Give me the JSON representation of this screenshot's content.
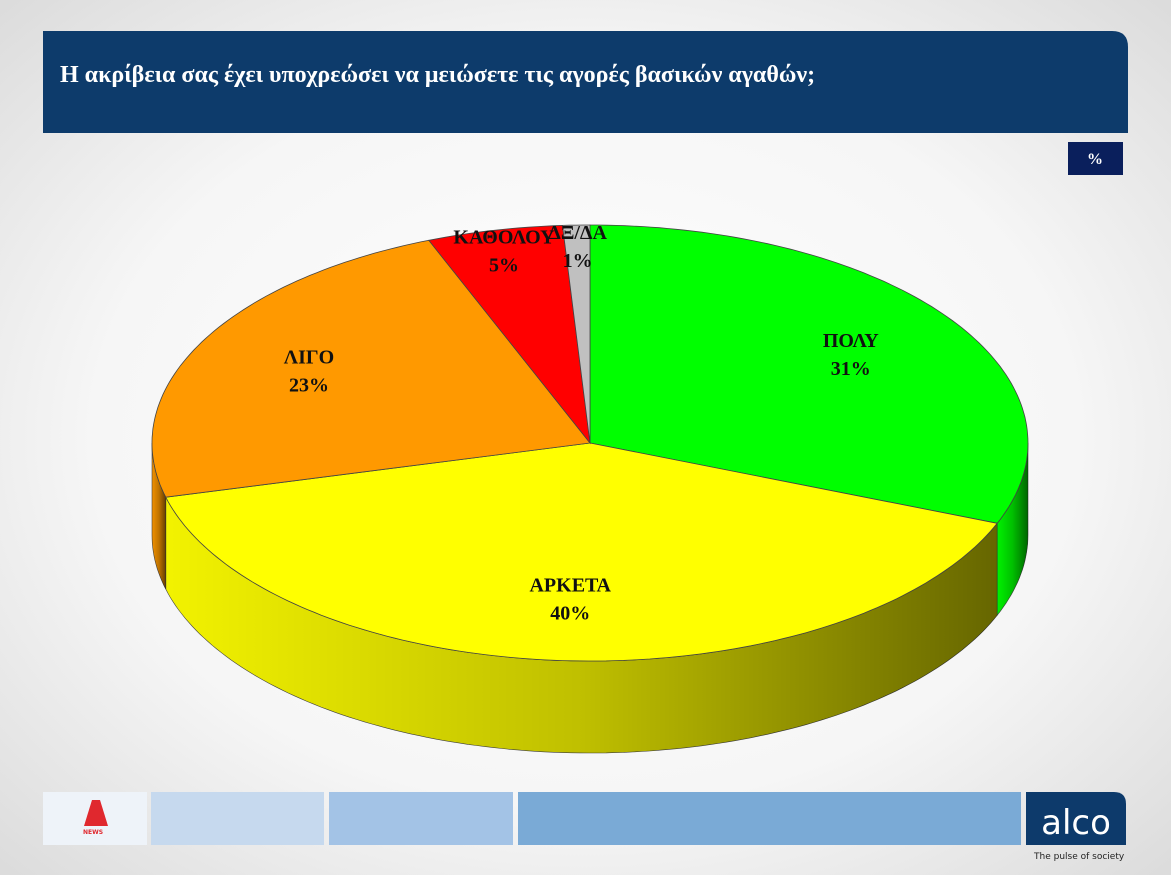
{
  "chart_data": {
    "type": "pie3d",
    "title": "Η ακρίβεια σας έχει υποχρεώσει να μειώσετε τις αγορές βασικών αγαθών;",
    "unit_badge": "%",
    "categories": [
      "ΠΟΛΥ",
      "ΑΡΚΕΤΑ",
      "ΛΙΓΟ",
      "ΚΑΘΟΛΟΥ",
      "ΔΞ/ΔΑ"
    ],
    "values": [
      31,
      40,
      23,
      5,
      1
    ],
    "value_labels": [
      "31%",
      "40%",
      "23%",
      "5%",
      "1%"
    ],
    "colors": [
      "#00ff00",
      "#ffff00",
      "#ff9900",
      "#ff0000",
      "#c0c0c0"
    ]
  },
  "footer": {
    "brand": "alco",
    "tagline": "The pulse of society",
    "news_logo": "NEWS"
  }
}
